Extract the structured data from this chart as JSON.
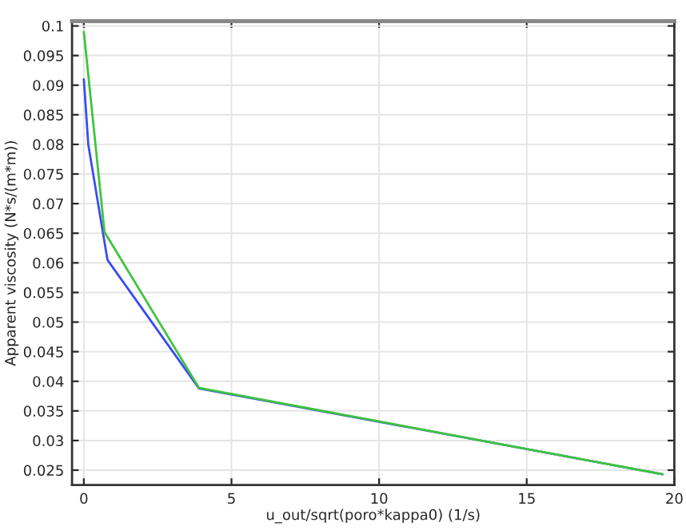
{
  "chart_data": {
    "type": "line",
    "xlabel": "u_out/sqrt(poro*kappa0) (1/s)",
    "ylabel": "Apparent viscosity (N*s/(m*m))",
    "series": [
      {
        "color": "#3b4cf0",
        "x": [
          0,
          0.15,
          0.8,
          3.9,
          19.6
        ],
        "values": [
          0.091,
          0.08,
          0.0605,
          0.0388,
          0.0243
        ]
      },
      {
        "color": "#3ec43e",
        "x": [
          0,
          0.7,
          3.9,
          19.6
        ],
        "values": [
          0.099,
          0.0652,
          0.0389,
          0.0243
        ]
      }
    ],
    "xlim": [
      -0.4,
      20
    ],
    "ylim": [
      0.0225,
      0.1008
    ],
    "xticks": [
      0,
      5,
      10,
      15,
      20
    ],
    "yticks": [
      0.025,
      0.03,
      0.035,
      0.04,
      0.045,
      0.05,
      0.055,
      0.06,
      0.065,
      0.07,
      0.075,
      0.08,
      0.085,
      0.09,
      0.095,
      0.1
    ],
    "grid": true,
    "line_style": "solid",
    "marker": "none"
  }
}
